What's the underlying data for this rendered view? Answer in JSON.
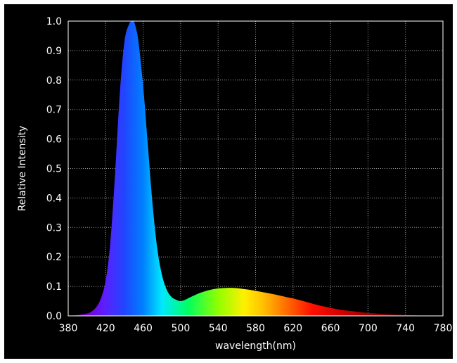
{
  "chart_data": {
    "type": "area",
    "title": "",
    "xlabel": "wavelength(nm)",
    "ylabel": "Relative Intensity",
    "xlim": [
      380,
      780
    ],
    "ylim": [
      0,
      1.0
    ],
    "x_ticks": [
      380,
      420,
      460,
      500,
      540,
      580,
      620,
      660,
      700,
      740,
      780
    ],
    "y_ticks": [
      0.0,
      0.1,
      0.2,
      0.3,
      0.4,
      0.5,
      0.6,
      0.7,
      0.8,
      0.9,
      1.0
    ],
    "x_tick_labels": [
      "380",
      "420",
      "460",
      "500",
      "540",
      "580",
      "620",
      "660",
      "700",
      "740",
      "780"
    ],
    "y_tick_labels": [
      "0.0",
      "0.1",
      "0.2",
      "0.3",
      "0.4",
      "0.5",
      "0.6",
      "0.7",
      "0.8",
      "0.9",
      "1.0"
    ],
    "grid": true,
    "fill": "visible-spectrum gradient",
    "series": [
      {
        "x": [
          380,
          390,
          400,
          405,
          410,
          415,
          420,
          425,
          430,
          435,
          440,
          445,
          448,
          450,
          452,
          455,
          460,
          465,
          470,
          475,
          480,
          485,
          490,
          495,
          500,
          505,
          510,
          515,
          520,
          530,
          540,
          550,
          560,
          570,
          580,
          590,
          600,
          610,
          620,
          630,
          640,
          650,
          660,
          670,
          680,
          690,
          700,
          720,
          740,
          760,
          780
        ],
        "y": [
          0.0,
          0.003,
          0.008,
          0.015,
          0.03,
          0.06,
          0.12,
          0.25,
          0.48,
          0.75,
          0.93,
          0.99,
          1.0,
          1.0,
          0.98,
          0.93,
          0.78,
          0.58,
          0.38,
          0.23,
          0.14,
          0.09,
          0.065,
          0.055,
          0.05,
          0.055,
          0.063,
          0.07,
          0.077,
          0.087,
          0.093,
          0.095,
          0.094,
          0.09,
          0.085,
          0.079,
          0.073,
          0.066,
          0.059,
          0.051,
          0.042,
          0.034,
          0.027,
          0.021,
          0.017,
          0.013,
          0.01,
          0.006,
          0.003,
          0.001,
          0.0
        ]
      }
    ]
  }
}
